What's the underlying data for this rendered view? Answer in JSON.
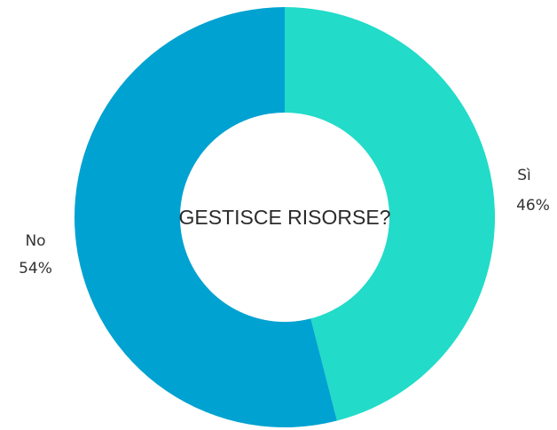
{
  "chart_data": {
    "type": "pie",
    "title": "GESTISCE RISORSE?",
    "categories": [
      "Sì",
      "No"
    ],
    "values": [
      46,
      54
    ],
    "value_labels": [
      "46%",
      "54%"
    ],
    "colors": [
      "#22dbc9",
      "#00a2d1"
    ],
    "donut": true,
    "legend": "none"
  }
}
